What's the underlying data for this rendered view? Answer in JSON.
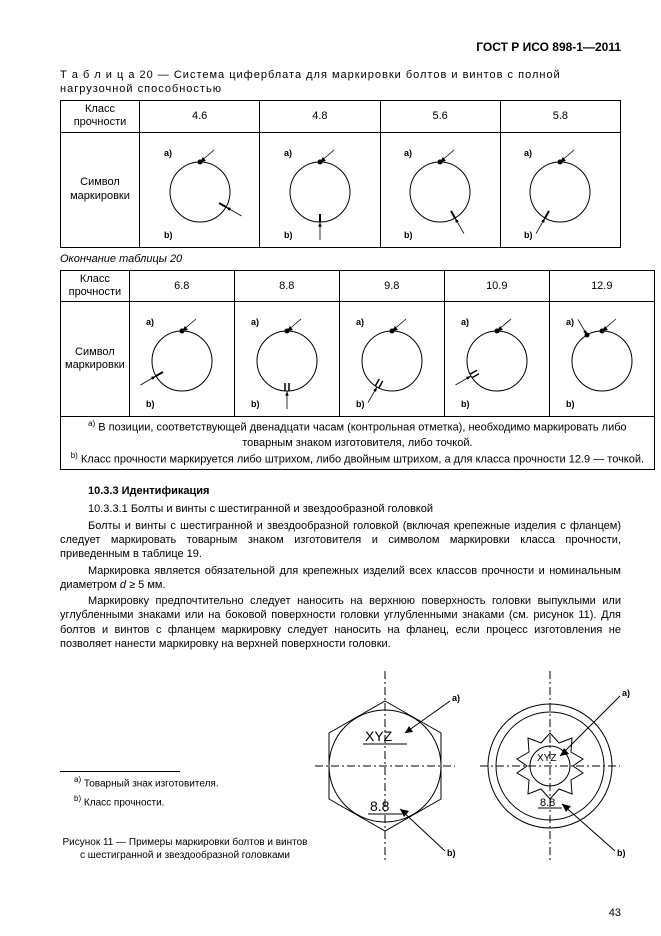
{
  "doc_code": "ГОСТ Р ИСО 898-1—2011",
  "table20": {
    "caption_prefix": "Т а б л и ц а  20",
    "caption_rest": " — Система циферблата для маркировки болтов и винтов с полной нагрузочной способностью",
    "row1_header": "Класс прочности",
    "row2_header": "Символ маркировки",
    "cont_caption": "Окончание таблицы 20",
    "top_classes": [
      "4.6",
      "4.8",
      "5.6",
      "5.8"
    ],
    "bot_classes": [
      "6.8",
      "8.8",
      "9.8",
      "10.9",
      "12.9"
    ],
    "note_a": " В позиции, соответствующей двенадцати часам (контрольная отметка), необходимо маркировать либо товарным знаком изготовителя, либо точкой.",
    "note_b": " Класс прочности маркируется либо штрихом, либо двойным штрихом, а для класса прочности 12.9 — точкой.",
    "lbl_a": "a)",
    "lbl_b": "b)",
    "clocks": {
      "4.6": {
        "mark_angle": 120,
        "mark": "tick"
      },
      "4.8": {
        "mark_angle": 180,
        "mark": "tick"
      },
      "5.6": {
        "mark_angle": 150,
        "mark": "tick"
      },
      "5.8": {
        "mark_angle": 210,
        "mark": "tick"
      },
      "6.8": {
        "mark_angle": 240,
        "mark": "tick"
      },
      "8.8": {
        "mark_angle": 180,
        "mark": "double"
      },
      "9.8": {
        "mark_angle": 210,
        "mark": "double"
      },
      "10.9": {
        "mark_angle": 240,
        "mark": "double"
      },
      "12.9": {
        "mark_angle": 330,
        "mark": "dot"
      }
    }
  },
  "section": {
    "title": "10.3.3  Идентификация",
    "p1": "10.3.3.1  Болты и винты с шестигранной и звездообразной головкой",
    "p2": "Болты и винты с шестигранной и звездообразной головкой (включая крепежные изделия с фланцем) следует маркировать товарным знаком изготовителя и символом маркировки класса прочности, приведенным в таблице 19.",
    "p3_a": "Маркировка является обязательной для крепежных изделий всех классов прочности и номинальным диаметром ",
    "p3_i": "d",
    "p3_b": " ≥ 5 мм.",
    "p4": "Маркировку предпочтительно следует наносить на верхнюю поверхность головки выпуклыми или углубленными знаками или на боковой поверхности головки углубленными знаками (см. рисунок 11). Для болтов и винтов с фланцем маркировку следует наносить на фланец, если процесс изготовления не позволяет нанести маркировку на верхней поверхности головки."
  },
  "fig11": {
    "fn_a": " Товарный знак изготовителя.",
    "fn_b": " Класс прочности.",
    "caption": "Рисунок 11 — Примеры маркировки болтов и винтов с шестигранной и звездообразной головками",
    "xyz": "XYZ",
    "cls": "8.8",
    "lbl_a": "a)",
    "lbl_b": "b)"
  },
  "page_number": "43"
}
